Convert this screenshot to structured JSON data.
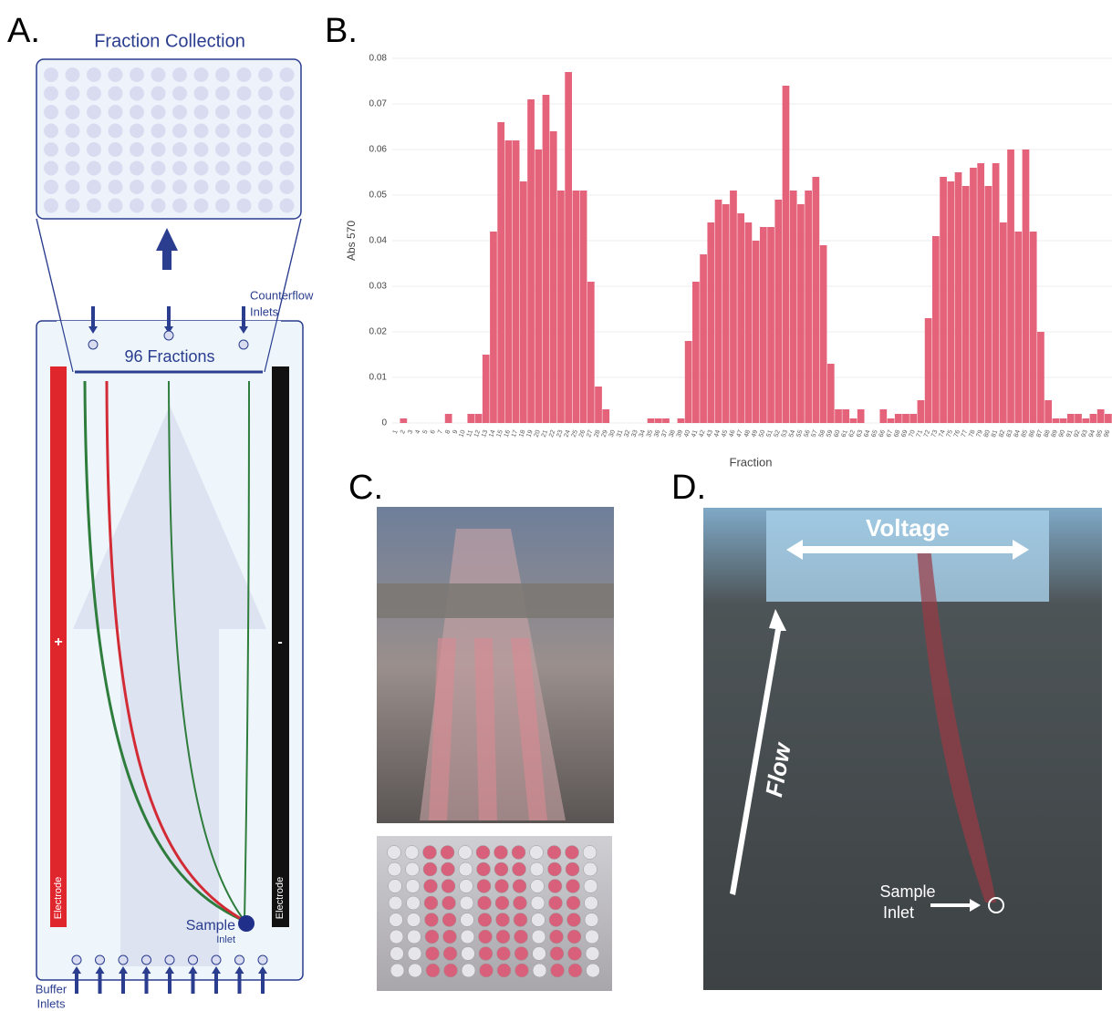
{
  "panels": [
    "A.",
    "B.",
    "C.",
    "D."
  ],
  "diagram": {
    "plate_title": "Fraction Collection",
    "fractions": "96 Fractions",
    "counterflow": [
      "Counterflow",
      "Inlets"
    ],
    "plus": "+",
    "minus": "-",
    "electrode_left": "Electrode",
    "electrode_right": "Electrode",
    "sample": [
      "Sample",
      "Inlet"
    ],
    "buffer": [
      "Buffer",
      "Inlets"
    ]
  },
  "photo": {
    "voltage": "Voltage",
    "flow": "Flow",
    "sample": [
      "Sample",
      "Inlet"
    ]
  },
  "chart_data": {
    "type": "bar",
    "x_label": "Fraction",
    "y_label": "Abs 570",
    "color": "#e5637a",
    "grid": true,
    "categories": [
      "1",
      "2",
      "3",
      "4",
      "5",
      "6",
      "7",
      "8",
      "9",
      "10",
      "11",
      "12",
      "13",
      "14",
      "15",
      "16",
      "17",
      "18",
      "19",
      "20",
      "21",
      "22",
      "23",
      "24",
      "25",
      "26",
      "27",
      "28",
      "29",
      "30",
      "31",
      "32",
      "33",
      "34",
      "35",
      "36",
      "37",
      "38",
      "39",
      "40",
      "41",
      "42",
      "43",
      "44",
      "45",
      "46",
      "47",
      "48",
      "49",
      "50",
      "51",
      "52",
      "53",
      "54",
      "55",
      "56",
      "57",
      "58",
      "59",
      "60",
      "61",
      "62",
      "63",
      "64",
      "65",
      "66",
      "67",
      "68",
      "69",
      "70",
      "71",
      "72",
      "73",
      "74",
      "75",
      "76",
      "77",
      "78",
      "79",
      "80",
      "81",
      "82",
      "83",
      "84",
      "85",
      "86",
      "87",
      "88",
      "89",
      "90",
      "91",
      "92",
      "93",
      "94",
      "95",
      "96"
    ],
    "values": [
      0,
      0.001,
      0,
      0,
      0,
      0,
      0,
      0.002,
      0,
      0,
      0.002,
      0.002,
      0.015,
      0.042,
      0.066,
      0.062,
      0.062,
      0.053,
      0.071,
      0.06,
      0.072,
      0.064,
      0.051,
      0.077,
      0.051,
      0.051,
      0.031,
      0.008,
      0.003,
      0,
      0,
      0,
      0,
      0,
      0.001,
      0.001,
      0.001,
      0,
      0.001,
      0.018,
      0.031,
      0.037,
      0.044,
      0.049,
      0.048,
      0.051,
      0.046,
      0.044,
      0.04,
      0.043,
      0.043,
      0.049,
      0.074,
      0.051,
      0.048,
      0.051,
      0.054,
      0.039,
      0.013,
      0.003,
      0.003,
      0.001,
      0.003,
      0,
      0,
      0.003,
      0.001,
      0.002,
      0.002,
      0.002,
      0.005,
      0.023,
      0.041,
      0.054,
      0.053,
      0.055,
      0.052,
      0.056,
      0.057,
      0.052,
      0.057,
      0.044,
      0.06,
      0.042,
      0.06,
      0.042,
      0.02,
      0.005,
      0.001,
      0.001,
      0.002,
      0.002,
      0.001,
      0.002,
      0.003,
      0.002
    ],
    "ylim": [
      0,
      0.08
    ],
    "yticks": [
      0,
      0.01,
      0.02,
      0.03,
      0.04,
      0.05,
      0.06,
      0.07,
      0.08
    ]
  }
}
